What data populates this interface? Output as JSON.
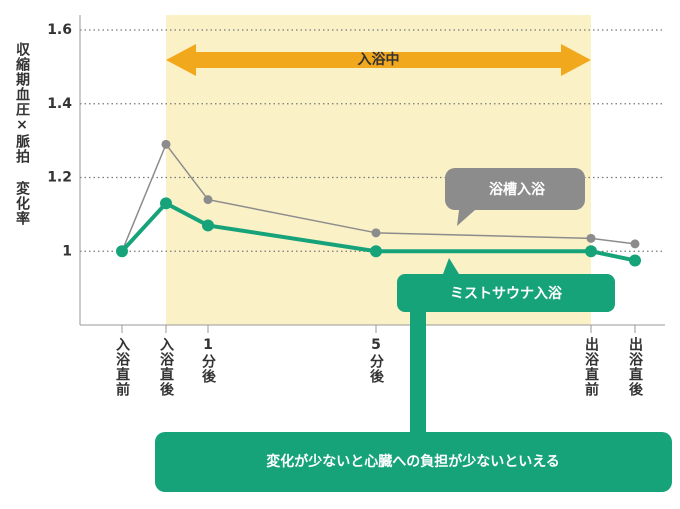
{
  "chart_data": {
    "type": "line",
    "y_label": "収縮期血圧×脈拍 変化率",
    "categories": [
      "入浴直前",
      "入浴直後",
      "1分後",
      "5分後",
      "出浴直前",
      "出浴直後"
    ],
    "series": [
      {
        "name": "浴槽入浴",
        "color": "#8c8c8c",
        "values": [
          1,
          1.29,
          1.14,
          1.05,
          1.035,
          1.02
        ]
      },
      {
        "name": "ミストサウナ入浴",
        "color": "#17a37a",
        "values": [
          1,
          1.13,
          1.07,
          1.0,
          1.0,
          0.975
        ]
      }
    ],
    "ylim": [
      0.8,
      1.6
    ],
    "yticks": [
      1,
      1.2,
      1.4,
      1.6
    ],
    "grid": true,
    "period_label": "入浴中",
    "note": "変化が少ないと心臓への負担が少ないといえる"
  }
}
